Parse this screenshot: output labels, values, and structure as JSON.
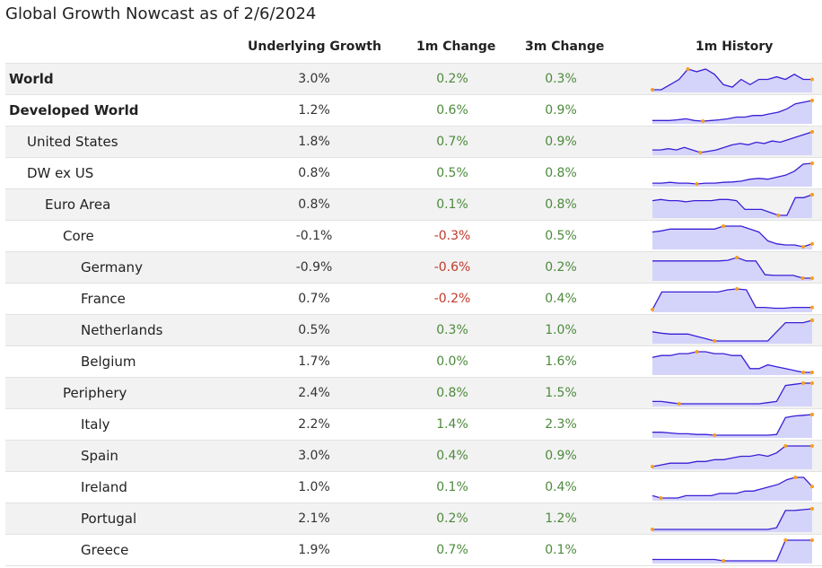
{
  "title": "Global Growth Nowcast as of 2/6/2024",
  "columns": {
    "underlying": "Underlying Growth",
    "m1": "1m Change",
    "m3": "3m Change",
    "history": "1m History"
  },
  "colors": {
    "positive": "#4d8a3c",
    "negative": "#c0392b",
    "spark_line": "#3a1fd6",
    "spark_fill": "#d4d4fb",
    "spark_marker": "#f5a020"
  },
  "chart_data": {
    "type": "table",
    "rows": [
      {
        "name": "World",
        "level": 0,
        "bold": true,
        "underlying": "3.0%",
        "m1": "0.2%",
        "m3": "0.3%",
        "history": [
          2.8,
          2.8,
          2.9,
          3.0,
          3.2,
          3.15,
          3.2,
          3.1,
          2.9,
          2.85,
          3.0,
          2.9,
          3.0,
          3.0,
          3.05,
          3.0,
          3.1,
          3.0,
          3.0
        ]
      },
      {
        "name": "Developed World",
        "level": 0,
        "bold": true,
        "underlying": "1.2%",
        "m1": "0.6%",
        "m3": "0.9%",
        "history": [
          0.6,
          0.6,
          0.6,
          0.62,
          0.65,
          0.6,
          0.58,
          0.6,
          0.62,
          0.65,
          0.7,
          0.7,
          0.75,
          0.75,
          0.8,
          0.85,
          0.95,
          1.1,
          1.15,
          1.2
        ]
      },
      {
        "name": "United States",
        "level": 1,
        "bold": false,
        "underlying": "1.8%",
        "m1": "0.7%",
        "m3": "0.9%",
        "history": [
          1.1,
          1.1,
          1.15,
          1.1,
          1.2,
          1.1,
          1.0,
          1.05,
          1.1,
          1.2,
          1.3,
          1.35,
          1.3,
          1.4,
          1.35,
          1.45,
          1.4,
          1.5,
          1.6,
          1.7,
          1.8
        ]
      },
      {
        "name": "DW ex US",
        "level": 1,
        "bold": false,
        "underlying": "0.8%",
        "m1": "0.5%",
        "m3": "0.8%",
        "history": [
          0.3,
          0.3,
          0.32,
          0.3,
          0.3,
          0.28,
          0.3,
          0.3,
          0.32,
          0.33,
          0.35,
          0.4,
          0.42,
          0.4,
          0.45,
          0.5,
          0.6,
          0.78,
          0.8
        ]
      },
      {
        "name": "Euro Area",
        "level": 2,
        "bold": false,
        "underlying": "0.8%",
        "m1": "0.1%",
        "m3": "0.8%",
        "history": [
          0.7,
          0.72,
          0.7,
          0.7,
          0.68,
          0.7,
          0.7,
          0.7,
          0.72,
          0.72,
          0.7,
          0.55,
          0.55,
          0.55,
          0.5,
          0.45,
          0.45,
          0.75,
          0.75,
          0.8
        ]
      },
      {
        "name": "Core",
        "level": 3,
        "bold": false,
        "underlying": "-0.1%",
        "m1": "-0.3%",
        "m3": "0.5%",
        "history": [
          0.1,
          0.12,
          0.15,
          0.15,
          0.15,
          0.15,
          0.15,
          0.15,
          0.2,
          0.2,
          0.2,
          0.15,
          0.1,
          -0.05,
          -0.1,
          -0.12,
          -0.12,
          -0.15,
          -0.1
        ]
      },
      {
        "name": "Germany",
        "level": 4,
        "bold": false,
        "underlying": "-0.9%",
        "m1": "-0.6%",
        "m3": "0.2%",
        "history": [
          -0.4,
          -0.4,
          -0.4,
          -0.4,
          -0.4,
          -0.4,
          -0.4,
          -0.4,
          -0.38,
          -0.3,
          -0.4,
          -0.4,
          -0.8,
          -0.82,
          -0.82,
          -0.82,
          -0.9,
          -0.9
        ]
      },
      {
        "name": "France",
        "level": 4,
        "bold": false,
        "underlying": "0.7%",
        "m1": "-0.2%",
        "m3": "0.4%",
        "history": [
          0.65,
          1.05,
          1.05,
          1.05,
          1.05,
          1.05,
          1.05,
          1.05,
          1.1,
          1.12,
          1.1,
          0.7,
          0.7,
          0.68,
          0.68,
          0.7,
          0.7,
          0.7
        ]
      },
      {
        "name": "Netherlands",
        "level": 4,
        "bold": false,
        "underlying": "0.5%",
        "m1": "0.3%",
        "m3": "1.0%",
        "history": [
          0.25,
          0.22,
          0.2,
          0.2,
          0.2,
          0.15,
          0.1,
          0.05,
          0.05,
          0.05,
          0.05,
          0.05,
          0.05,
          0.05,
          0.25,
          0.45,
          0.45,
          0.45,
          0.5
        ]
      },
      {
        "name": "Belgium",
        "level": 4,
        "bold": false,
        "underlying": "1.7%",
        "m1": "0.0%",
        "m3": "1.6%",
        "history": [
          2.1,
          2.15,
          2.15,
          2.2,
          2.2,
          2.25,
          2.25,
          2.2,
          2.2,
          2.15,
          2.15,
          1.8,
          1.8,
          1.9,
          1.85,
          1.8,
          1.75,
          1.7,
          1.7
        ]
      },
      {
        "name": "Periphery",
        "level": 3,
        "bold": false,
        "underlying": "2.4%",
        "m1": "0.8%",
        "m3": "1.5%",
        "history": [
          1.6,
          1.6,
          1.55,
          1.5,
          1.5,
          1.5,
          1.5,
          1.5,
          1.5,
          1.5,
          1.5,
          1.5,
          1.5,
          1.55,
          1.6,
          2.3,
          2.35,
          2.4,
          2.4
        ]
      },
      {
        "name": "Italy",
        "level": 4,
        "bold": false,
        "underlying": "2.2%",
        "m1": "1.4%",
        "m3": "2.3%",
        "history": [
          1.0,
          1.0,
          0.95,
          0.9,
          0.9,
          0.85,
          0.85,
          0.8,
          0.8,
          0.8,
          0.8,
          0.8,
          0.8,
          0.8,
          0.85,
          2.0,
          2.1,
          2.15,
          2.2
        ]
      },
      {
        "name": "Spain",
        "level": 4,
        "bold": false,
        "underlying": "3.0%",
        "m1": "0.4%",
        "m3": "0.9%",
        "history": [
          2.4,
          2.45,
          2.5,
          2.5,
          2.5,
          2.55,
          2.55,
          2.6,
          2.6,
          2.65,
          2.7,
          2.7,
          2.75,
          2.7,
          2.8,
          3.0,
          3.0,
          3.0,
          3.0
        ]
      },
      {
        "name": "Ireland",
        "level": 4,
        "bold": false,
        "underlying": "1.0%",
        "m1": "0.1%",
        "m3": "0.4%",
        "history": [
          0.8,
          0.75,
          0.75,
          0.75,
          0.8,
          0.8,
          0.8,
          0.8,
          0.85,
          0.85,
          0.85,
          0.9,
          0.9,
          0.95,
          1.0,
          1.05,
          1.15,
          1.2,
          1.2,
          1.0
        ]
      },
      {
        "name": "Portugal",
        "level": 4,
        "bold": false,
        "underlying": "2.1%",
        "m1": "0.2%",
        "m3": "1.2%",
        "history": [
          0.9,
          0.9,
          0.9,
          0.9,
          0.9,
          0.9,
          0.9,
          0.9,
          0.9,
          0.9,
          0.9,
          0.9,
          0.9,
          0.9,
          1.0,
          2.0,
          2.0,
          2.05,
          2.1
        ]
      },
      {
        "name": "Greece",
        "level": 4,
        "bold": false,
        "underlying": "1.9%",
        "m1": "0.7%",
        "m3": "0.1%",
        "history": [
          1.2,
          1.2,
          1.2,
          1.2,
          1.2,
          1.2,
          1.2,
          1.2,
          1.15,
          1.15,
          1.15,
          1.15,
          1.15,
          1.15,
          1.15,
          1.9,
          1.9,
          1.9,
          1.9
        ]
      }
    ]
  }
}
